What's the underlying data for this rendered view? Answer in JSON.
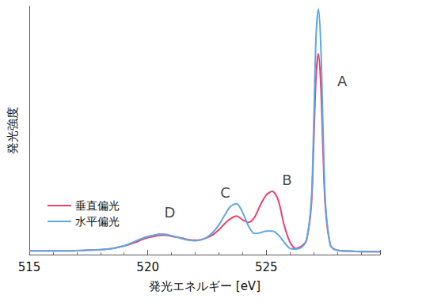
{
  "chart_data": {
    "type": "line",
    "x_label": "発光エネルギー [eV]",
    "y_label": "発光強度",
    "xlim": [
      515,
      529.8
    ],
    "xticks": [
      515,
      520,
      525
    ],
    "ylim": [
      0,
      100
    ],
    "tick_labels": "x",
    "grid": false,
    "legend": "lower left",
    "marker": "none",
    "x": [
      515,
      515.5,
      516,
      516.5,
      517,
      517.5,
      518,
      518.5,
      519,
      519.25,
      519.5,
      519.75,
      520,
      520.25,
      520.5,
      520.75,
      521,
      521.25,
      521.5,
      521.75,
      522,
      522.25,
      522.5,
      522.75,
      523,
      523.25,
      523.5,
      523.75,
      524,
      524.25,
      524.5,
      524.75,
      525,
      525.25,
      525.5,
      525.75,
      526,
      526.25,
      526.5,
      526.7,
      526.9,
      527.0,
      527.1,
      527.2,
      527.3,
      527.4,
      527.5,
      527.7,
      527.9,
      528.2,
      528.5,
      529,
      529.5,
      529.8
    ],
    "series": [
      {
        "name": "垂直偏光",
        "color": "#e8416f",
        "line_style": "solid",
        "values": [
          1.5,
          1.5,
          1.5,
          1.5,
          1.6,
          1.8,
          2,
          2.5,
          3.5,
          4.2,
          5,
          6,
          6.8,
          7.3,
          7.8,
          7.8,
          7.4,
          7,
          6.5,
          6,
          5.8,
          6,
          6.8,
          8,
          10,
          12.5,
          14.5,
          15.5,
          14,
          13,
          15,
          20,
          24,
          25.5,
          22,
          12,
          5,
          2.5,
          3.5,
          6,
          20,
          45,
          72,
          81,
          68,
          40,
          18,
          4,
          2,
          1.5,
          1.4,
          1.2,
          1.2,
          1.2
        ]
      },
      {
        "name": "水平偏光",
        "color": "#5ba8e6",
        "line_style": "solid",
        "values": [
          1.5,
          1.5,
          1.5,
          1.5,
          1.6,
          1.8,
          2,
          2.5,
          3.5,
          4.5,
          5.5,
          6.5,
          7.3,
          7.8,
          8.3,
          8.2,
          7.6,
          7,
          6.3,
          5.8,
          5.6,
          6,
          7,
          9,
          12,
          16,
          19.5,
          20.5,
          17,
          11.5,
          8.5,
          8.8,
          9.5,
          9.5,
          8,
          5,
          2.5,
          2.2,
          3,
          6,
          22,
          52,
          88,
          99,
          84,
          48,
          20,
          4,
          2,
          1.5,
          1.4,
          1.2,
          1.2,
          1.2
        ]
      }
    ],
    "annotations": [
      {
        "text": "A",
        "x": 528.2,
        "y": 70
      },
      {
        "text": "B",
        "x": 525.87,
        "y": 30
      },
      {
        "text": "C",
        "x": 523.27,
        "y": 25
      },
      {
        "text": "D",
        "x": 520.93,
        "y": 17
      }
    ]
  }
}
